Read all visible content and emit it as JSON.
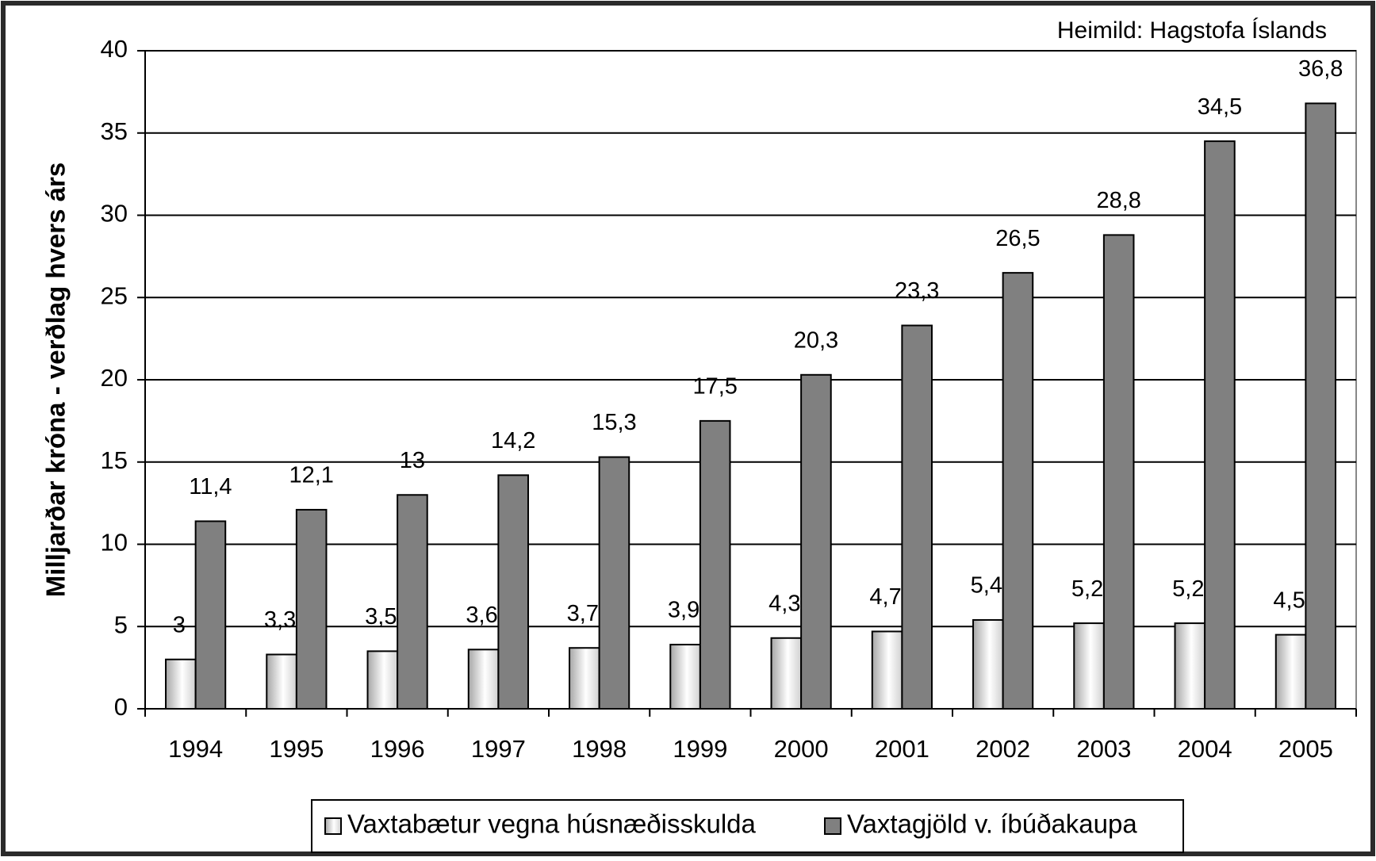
{
  "chart_data": {
    "type": "bar",
    "source": "Heimild: Hagstofa Íslands",
    "y_label": "Milljarðar króna - verðlag hvers árs",
    "categories": [
      "1994",
      "1995",
      "1996",
      "1997",
      "1998",
      "1999",
      "2000",
      "2001",
      "2002",
      "2003",
      "2004",
      "2005"
    ],
    "series": [
      {
        "name": "Vaxtabætur vegna húsnæðisskulda",
        "color": "#d9d9d9",
        "values": [
          3,
          3.3,
          3.5,
          3.6,
          3.7,
          3.9,
          4.3,
          4.7,
          5.4,
          5.2,
          5.2,
          4.5
        ],
        "value_labels": [
          "3",
          "3,3",
          "3,5",
          "3,6",
          "3,7",
          "3,9",
          "4,3",
          "4,7",
          "5,4",
          "5,2",
          "5,2",
          "4,5"
        ]
      },
      {
        "name": "Vaxtagjöld v. íbúðakaupa",
        "color": "#808080",
        "values": [
          11.4,
          12.1,
          13,
          14.2,
          15.3,
          17.5,
          20.3,
          23.3,
          26.5,
          28.8,
          34.5,
          36.8
        ],
        "value_labels": [
          "11,4",
          "12,1",
          "13",
          "14,2",
          "15,3",
          "17,5",
          "20,3",
          "23,3",
          "26,5",
          "28,8",
          "34,5",
          "36,8"
        ]
      }
    ],
    "ylim": [
      0,
      40
    ],
    "yticks": [
      0,
      5,
      10,
      15,
      20,
      25,
      30,
      35,
      40
    ],
    "grid": true
  }
}
